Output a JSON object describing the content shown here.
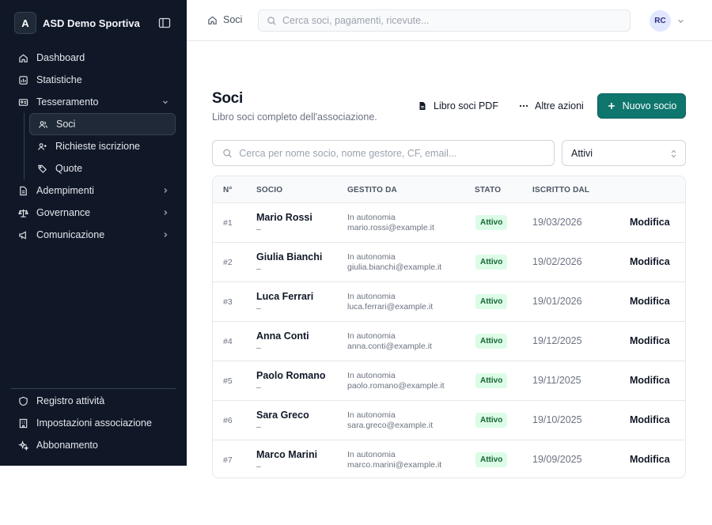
{
  "sidebar": {
    "logo_letter": "A",
    "org_name": "ASD Demo Sportiva",
    "nav": {
      "dashboard": "Dashboard",
      "statistiche": "Statistiche",
      "tesseramento": "Tesseramento",
      "soci": "Soci",
      "richieste": "Richieste iscrizione",
      "quote": "Quote",
      "adempimenti": "Adempimenti",
      "governance": "Governance",
      "comunicazione": "Comunicazione"
    },
    "bottom": {
      "registro": "Registro attività",
      "impostazioni": "Impostazioni associazione",
      "abbonamento": "Abbonamento"
    }
  },
  "header": {
    "breadcrumb": "Soci",
    "search_placeholder": "Cerca soci, pagamenti, ricevute...",
    "avatar_initials": "RC"
  },
  "page": {
    "title": "Soci",
    "subtitle": "Libro soci completo dell'associazione.",
    "pdf_button": "Libro soci PDF",
    "more_button": "Altre azioni",
    "new_button": "Nuovo socio",
    "search_placeholder": "Cerca per nome socio, nome gestore, CF, email...",
    "filter_value": "Attivi"
  },
  "table": {
    "headers": {
      "num": "N°",
      "socio": "SOCIO",
      "gestito": "GESTITO DA",
      "stato": "STATO",
      "iscritto": "ISCRITTO DAL"
    },
    "rows": [
      {
        "num": "#1",
        "name": "Mario Rossi",
        "sub": "–",
        "managed": "In autonomia",
        "email": "mario.rossi@example.it",
        "status": "Attivo",
        "date": "19/03/2026",
        "action": "Modifica"
      },
      {
        "num": "#2",
        "name": "Giulia Bianchi",
        "sub": "–",
        "managed": "In autonomia",
        "email": "giulia.bianchi@example.it",
        "status": "Attivo",
        "date": "19/02/2026",
        "action": "Modifica"
      },
      {
        "num": "#3",
        "name": "Luca Ferrari",
        "sub": "–",
        "managed": "In autonomia",
        "email": "luca.ferrari@example.it",
        "status": "Attivo",
        "date": "19/01/2026",
        "action": "Modifica"
      },
      {
        "num": "#4",
        "name": "Anna Conti",
        "sub": "–",
        "managed": "In autonomia",
        "email": "anna.conti@example.it",
        "status": "Attivo",
        "date": "19/12/2025",
        "action": "Modifica"
      },
      {
        "num": "#5",
        "name": "Paolo Romano",
        "sub": "–",
        "managed": "In autonomia",
        "email": "paolo.romano@example.it",
        "status": "Attivo",
        "date": "19/11/2025",
        "action": "Modifica"
      },
      {
        "num": "#6",
        "name": "Sara Greco",
        "sub": "–",
        "managed": "In autonomia",
        "email": "sara.greco@example.it",
        "status": "Attivo",
        "date": "19/10/2025",
        "action": "Modifica"
      },
      {
        "num": "#7",
        "name": "Marco Marini",
        "sub": "–",
        "managed": "In autonomia",
        "email": "marco.marini@example.it",
        "status": "Attivo",
        "date": "19/09/2025",
        "action": "Modifica"
      }
    ]
  },
  "colors": {
    "sidebar_bg": "#101828",
    "accent": "#0f766e",
    "badge_bg": "#dcfce7",
    "badge_text": "#166534"
  }
}
